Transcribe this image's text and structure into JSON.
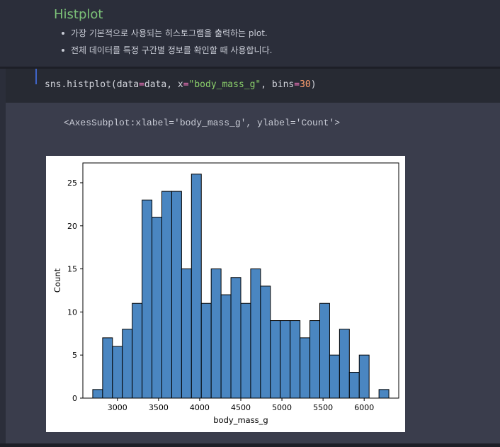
{
  "markdown": {
    "title": "Histplot",
    "bullets": [
      "가장 기본적으로 사용되는 히스토그램을 출력하는 plot.",
      "전체 데이터를 특정 구간별 정보를 확인할 때 사용합니다."
    ]
  },
  "code": {
    "prefix": "sns.histplot(data",
    "eq1": "=",
    "mid1": "data, x",
    "eq2": "=",
    "str": "\"body_mass_g\"",
    "mid2": ", bins",
    "eq3": "=",
    "num": "30",
    "suffix": ")"
  },
  "output": {
    "repr": "<AxesSubplot:xlabel='body_mass_g', ylabel='Count'>"
  },
  "colors": {
    "bar_fill": "#4a86c1",
    "bar_edge": "#000000",
    "title": "#7cc278",
    "string": "#8bd06b",
    "number": "#ff9f6e",
    "operator": "#ff79c6"
  },
  "chart_data": {
    "type": "bar",
    "title": "",
    "xlabel": "body_mass_g",
    "ylabel": "Count",
    "bin_start": 2700,
    "bin_width": 120,
    "values": [
      1,
      7,
      6,
      8,
      11,
      23,
      21,
      24,
      24,
      15,
      26,
      11,
      15,
      12,
      14,
      11,
      15,
      13,
      9,
      9,
      9,
      7,
      9,
      11,
      5,
      8,
      3,
      5,
      0,
      1
    ],
    "xlim": [
      2580,
      6420
    ],
    "ylim": [
      0,
      27.3
    ],
    "xticks": [
      3000,
      3500,
      4000,
      4500,
      5000,
      5500,
      6000
    ],
    "yticks": [
      0,
      5,
      10,
      15,
      20,
      25
    ],
    "grid": false,
    "legend": "none"
  }
}
